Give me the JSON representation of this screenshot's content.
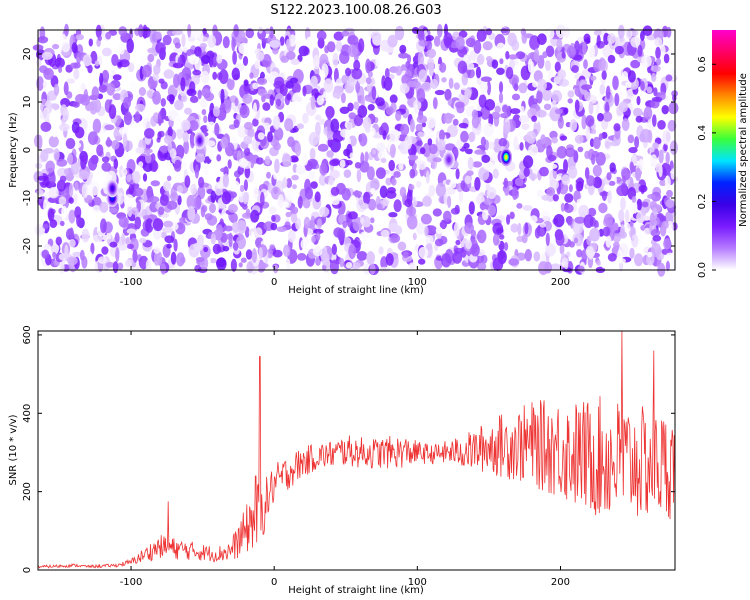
{
  "title": "S122.2023.100.08.26.G03",
  "chart_data": [
    {
      "type": "heatmap",
      "xlabel": "Height of straight line (km)",
      "ylabel": "Frequency (Hz)",
      "xlim": [
        -165,
        280
      ],
      "ylim": [
        -25,
        25
      ],
      "x_ticks": [
        -100,
        0,
        100,
        200
      ],
      "y_ticks": [
        -20,
        -10,
        0,
        10,
        20
      ],
      "x_tick_labels": [
        "-100",
        "0",
        "100",
        "200"
      ],
      "y_tick_labels": [
        "-20",
        "-10",
        "0",
        "10",
        "20"
      ],
      "colormap": [
        "#ffffff",
        "#b57bff",
        "#7a1bff",
        "#3a00e6",
        "#0022ff",
        "#00e5ff",
        "#3aff3a",
        "#ffff00",
        "#ff8800",
        "#ff0000",
        "#ff0066",
        "#ff00cc"
      ],
      "colorbar": {
        "label": "Normalized spectral amplitude",
        "range": [
          0,
          0.7
        ],
        "ticks": [
          0.0,
          0.2,
          0.4,
          0.6
        ],
        "tick_labels": [
          "0.0",
          "0.2",
          "0.4",
          "0.6"
        ]
      },
      "hotspots": [
        {
          "x": -113,
          "y": -10,
          "value": 0.25
        },
        {
          "x": -113,
          "y": -8,
          "value": 0.18
        },
        {
          "x": -52,
          "y": 2,
          "value": 0.15
        },
        {
          "x": 122,
          "y": -2,
          "value": 0.12
        },
        {
          "x": 162,
          "y": -1.5,
          "value": 0.45
        }
      ]
    },
    {
      "type": "line",
      "xlabel": "Height of straight line (km)",
      "ylabel": "SNR (10 * v/v)",
      "xlim": [
        -165,
        280
      ],
      "ylim": [
        0,
        610
      ],
      "x_ticks": [
        -100,
        0,
        100,
        200
      ],
      "y_ticks": [
        0,
        200,
        400,
        600
      ],
      "x_tick_labels": [
        "-100",
        "0",
        "100",
        "200"
      ],
      "y_tick_labels": [
        "0",
        "200",
        "400",
        "600"
      ],
      "line_color": "#ee3333",
      "series": [
        {
          "x": [
            -165,
            -150,
            -140,
            -130,
            -120,
            -110,
            -100,
            -90,
            -80,
            -70,
            -60,
            -50,
            -40,
            -30,
            -20,
            -15,
            -10,
            -5,
            0,
            10,
            20,
            30,
            40,
            50,
            60,
            70,
            80,
            90,
            100,
            110,
            120,
            130,
            140,
            150,
            160,
            170,
            180,
            190,
            200,
            210,
            220,
            230,
            240,
            250,
            260,
            270,
            280
          ],
          "y": [
            8,
            10,
            12,
            9,
            10,
            12,
            20,
            40,
            60,
            55,
            50,
            45,
            40,
            50,
            100,
            130,
            140,
            180,
            220,
            250,
            275,
            290,
            295,
            305,
            300,
            298,
            300,
            302,
            300,
            295,
            300,
            302,
            305,
            315,
            318,
            320,
            322,
            315,
            310,
            295,
            290,
            285,
            280,
            275,
            270,
            268,
            265
          ],
          "spread": [
            3,
            4,
            4,
            3,
            4,
            4,
            8,
            20,
            30,
            28,
            25,
            22,
            20,
            30,
            60,
            80,
            90,
            60,
            50,
            45,
            40,
            35,
            35,
            40,
            40,
            40,
            42,
            42,
            30,
            25,
            30,
            40,
            55,
            70,
            85,
            95,
            110,
            120,
            130,
            140,
            150,
            160,
            160,
            150,
            145,
            140,
            135
          ]
        }
      ],
      "peaks": [
        {
          "x": -74,
          "y": 175
        },
        {
          "x": -13,
          "y": 240
        },
        {
          "x": -10,
          "y": 545
        },
        {
          "x": 243,
          "y": 610
        },
        {
          "x": 265,
          "y": 560
        }
      ]
    }
  ]
}
